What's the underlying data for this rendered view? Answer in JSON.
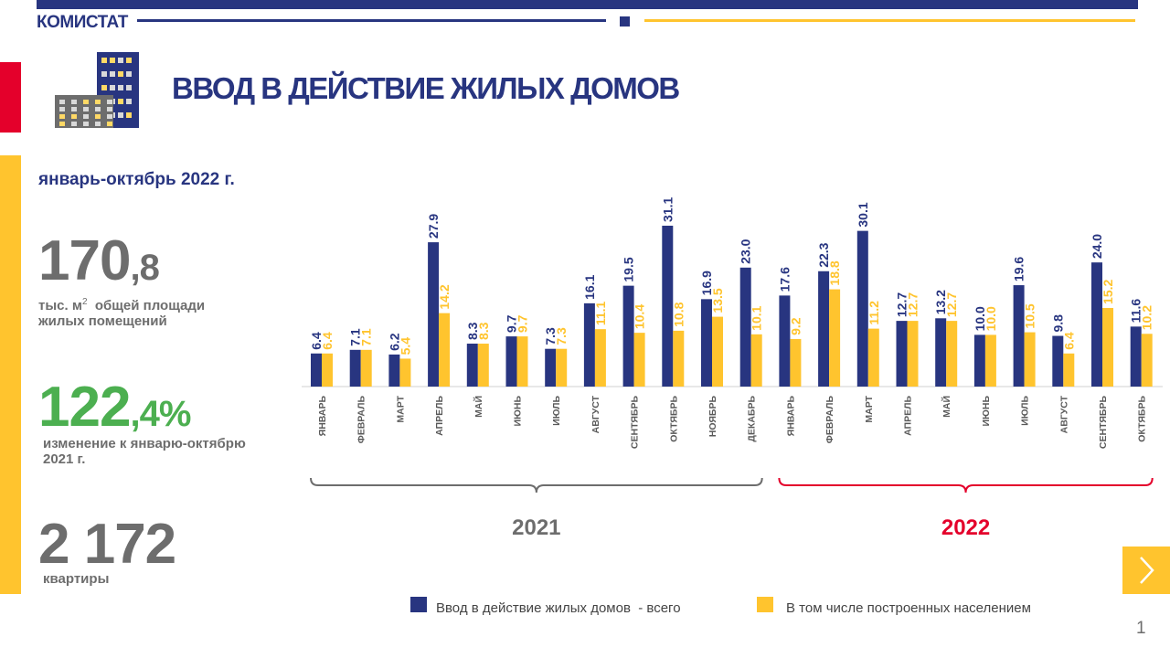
{
  "header": {
    "brand": "КОМИСТАТ",
    "title": "ВВОД В ДЕЙСТВИЕ ЖИЛЫХ ДОМОВ"
  },
  "summary": {
    "period": "январь-октябрь 2022 г.",
    "area_int": "170",
    "area_frac": ",8",
    "area_caption_1": "тыс. м",
    "area_caption_sup": "2",
    "area_caption_2": "  общей площади",
    "area_caption_3": "жилых помещений",
    "pct_int": "122",
    "pct_frac": ",4%",
    "pct_caption_1": "изменение к январю-октябрю",
    "pct_caption_2": "2021 г.",
    "flats": "2 172",
    "flats_caption": "квартиры"
  },
  "colors": {
    "navy": "#283580",
    "yellow": "#ffc42e",
    "red": "#e4002b",
    "green": "#4caf50",
    "gray": "#6d6d6d"
  },
  "chart_data": {
    "type": "bar",
    "categories": [
      "ЯНВАРЬ",
      "ФЕВРАЛЬ",
      "МАРТ",
      "АПРЕЛЬ",
      "МАЙ",
      "ИЮНЬ",
      "ИЮЛЬ",
      "АВГУСТ",
      "СЕНТЯБРЬ",
      "ОКТЯБРЬ",
      "НОЯБРЬ",
      "ДЕКАБРЬ",
      "ЯНВАРЬ",
      "ФЕВРАЛЬ",
      "МАРТ",
      "АПРЕЛЬ",
      "МАЙ",
      "ИЮНЬ",
      "ИЮЛЬ",
      "АВГУСТ",
      "СЕНТЯБРЬ",
      "ОКТЯБРЬ"
    ],
    "groups": [
      {
        "label": "2021",
        "color": "#6d6d6d",
        "from": 0,
        "to": 11
      },
      {
        "label": "2022",
        "color": "#e4002b",
        "from": 12,
        "to": 21
      }
    ],
    "series": [
      {
        "name": "Ввод в действие жилых домов  - всего",
        "color": "#283580",
        "values": [
          6.4,
          7.1,
          6.2,
          27.9,
          8.3,
          9.7,
          7.3,
          16.1,
          19.5,
          31.1,
          16.9,
          23.0,
          17.6,
          22.3,
          30.1,
          12.7,
          13.2,
          10.0,
          19.6,
          9.8,
          24.0,
          11.6
        ]
      },
      {
        "name": "В том числе построенных населением",
        "color": "#ffc42e",
        "values": [
          6.4,
          7.1,
          5.4,
          14.2,
          8.3,
          9.7,
          7.3,
          11.1,
          10.4,
          10.8,
          13.5,
          10.1,
          9.2,
          18.8,
          11.2,
          12.7,
          12.7,
          10.0,
          10.5,
          6.4,
          15.2,
          10.2
        ]
      }
    ],
    "ylim": [
      0,
      32
    ],
    "grid": false,
    "legend": "bottom"
  },
  "footer": {
    "page": "1"
  }
}
